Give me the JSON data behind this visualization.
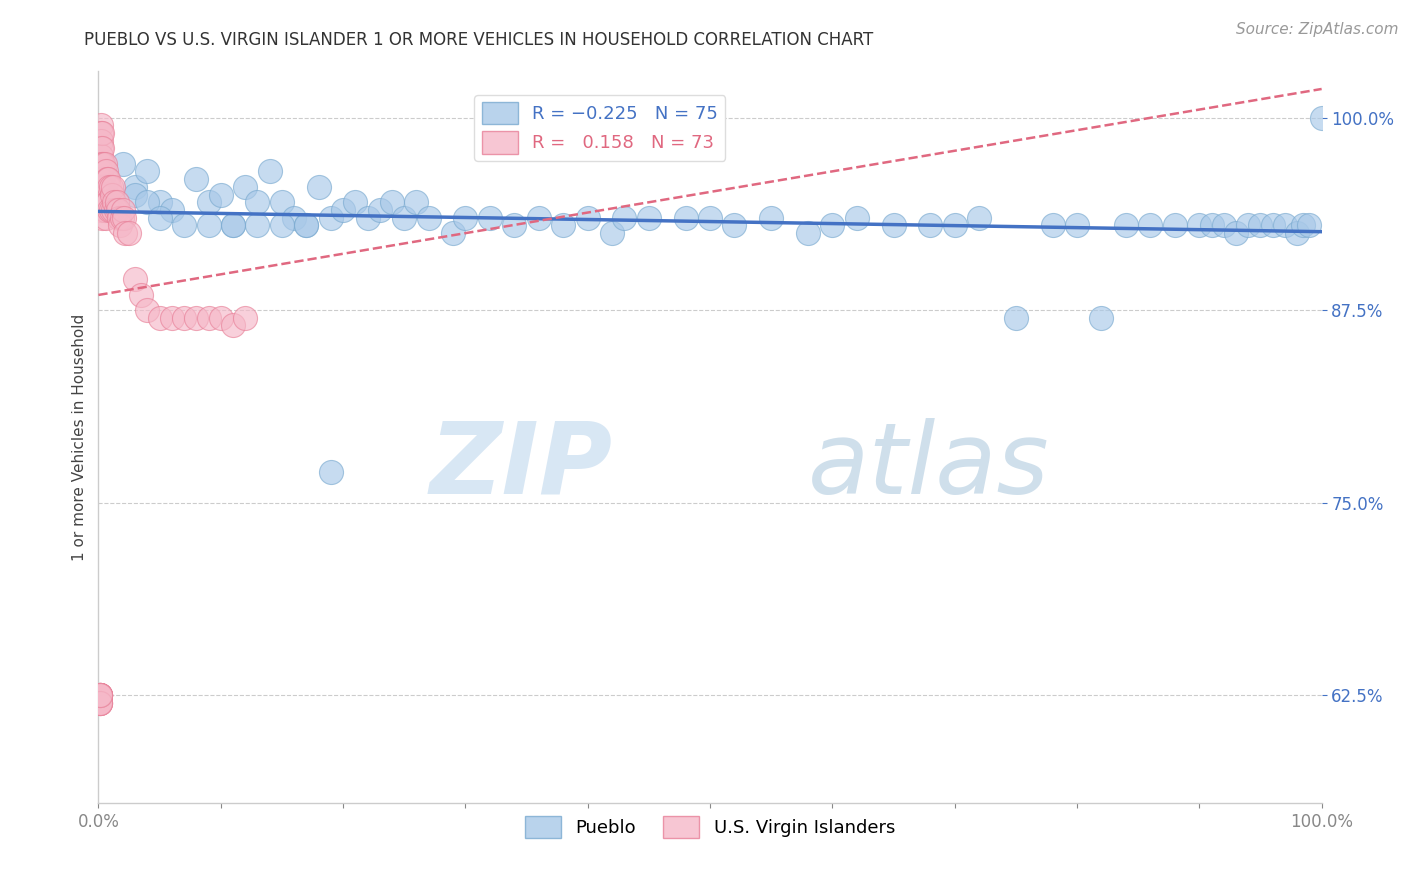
{
  "title": "PUEBLO VS U.S. VIRGIN ISLANDER 1 OR MORE VEHICLES IN HOUSEHOLD CORRELATION CHART",
  "source": "Source: ZipAtlas.com",
  "ylabel": "1 or more Vehicles in Household",
  "ytick_labels": [
    "62.5%",
    "75.0%",
    "87.5%",
    "100.0%"
  ],
  "ytick_values": [
    0.625,
    0.75,
    0.875,
    1.0
  ],
  "xlim": [
    0.0,
    1.0
  ],
  "ylim": [
    0.555,
    1.03
  ],
  "pueblo_color": "#a8c8e8",
  "pueblo_edge": "#7aaad0",
  "virgin_color": "#f5b8c8",
  "virgin_edge": "#e88098",
  "trendline_pueblo_color": "#4472c4",
  "trendline_virgin_color": "#e06880",
  "watermark_zip": "ZIP",
  "watermark_atlas": "atlas",
  "pueblo_x": [
    0.02,
    0.03,
    0.04,
    0.05,
    0.06,
    0.08,
    0.09,
    0.1,
    0.11,
    0.12,
    0.13,
    0.14,
    0.15,
    0.16,
    0.17,
    0.18,
    0.19,
    0.2,
    0.21,
    0.22,
    0.23,
    0.24,
    0.25,
    0.26,
    0.27,
    0.29,
    0.3,
    0.32,
    0.34,
    0.36,
    0.38,
    0.4,
    0.42,
    0.43,
    0.45,
    0.48,
    0.5,
    0.52,
    0.55,
    0.58,
    0.6,
    0.62,
    0.65,
    0.68,
    0.7,
    0.72,
    0.75,
    0.78,
    0.8,
    0.82,
    0.84,
    0.86,
    0.88,
    0.9,
    0.91,
    0.92,
    0.93,
    0.94,
    0.95,
    0.96,
    0.97,
    0.98,
    0.985,
    0.99,
    1.0,
    0.03,
    0.04,
    0.05,
    0.07,
    0.09,
    0.11,
    0.13,
    0.15,
    0.17,
    0.19
  ],
  "pueblo_y": [
    0.97,
    0.955,
    0.965,
    0.945,
    0.94,
    0.96,
    0.945,
    0.95,
    0.93,
    0.955,
    0.945,
    0.965,
    0.945,
    0.935,
    0.93,
    0.955,
    0.935,
    0.94,
    0.945,
    0.935,
    0.94,
    0.945,
    0.935,
    0.945,
    0.935,
    0.925,
    0.935,
    0.935,
    0.93,
    0.935,
    0.93,
    0.935,
    0.925,
    0.935,
    0.935,
    0.935,
    0.935,
    0.93,
    0.935,
    0.925,
    0.93,
    0.935,
    0.93,
    0.93,
    0.93,
    0.935,
    0.87,
    0.93,
    0.93,
    0.87,
    0.93,
    0.93,
    0.93,
    0.93,
    0.93,
    0.93,
    0.925,
    0.93,
    0.93,
    0.93,
    0.93,
    0.925,
    0.93,
    0.93,
    1.0,
    0.95,
    0.945,
    0.935,
    0.93,
    0.93,
    0.93,
    0.93,
    0.93,
    0.93,
    0.77
  ],
  "virgin_x": [
    0.002,
    0.002,
    0.002,
    0.002,
    0.002,
    0.002,
    0.002,
    0.002,
    0.002,
    0.002,
    0.002,
    0.002,
    0.003,
    0.003,
    0.003,
    0.003,
    0.003,
    0.003,
    0.003,
    0.004,
    0.004,
    0.004,
    0.005,
    0.005,
    0.005,
    0.006,
    0.006,
    0.006,
    0.007,
    0.007,
    0.008,
    0.008,
    0.009,
    0.009,
    0.01,
    0.01,
    0.011,
    0.012,
    0.012,
    0.013,
    0.014,
    0.015,
    0.016,
    0.017,
    0.018,
    0.019,
    0.02,
    0.021,
    0.022,
    0.025,
    0.03,
    0.035,
    0.04,
    0.05,
    0.06,
    0.07,
    0.08,
    0.09,
    0.1,
    0.11,
    0.12,
    0.001,
    0.001,
    0.001,
    0.001,
    0.001,
    0.001,
    0.001,
    0.001,
    0.001,
    0.001,
    0.001,
    0.001
  ],
  "virgin_y": [
    0.995,
    0.99,
    0.985,
    0.98,
    0.975,
    0.97,
    0.965,
    0.96,
    0.955,
    0.95,
    0.945,
    0.94,
    0.99,
    0.98,
    0.97,
    0.96,
    0.95,
    0.94,
    0.935,
    0.97,
    0.955,
    0.945,
    0.97,
    0.955,
    0.94,
    0.965,
    0.95,
    0.935,
    0.96,
    0.945,
    0.96,
    0.945,
    0.955,
    0.94,
    0.955,
    0.94,
    0.95,
    0.955,
    0.94,
    0.945,
    0.94,
    0.945,
    0.94,
    0.935,
    0.93,
    0.935,
    0.94,
    0.935,
    0.925,
    0.925,
    0.895,
    0.885,
    0.875,
    0.87,
    0.87,
    0.87,
    0.87,
    0.87,
    0.87,
    0.865,
    0.87,
    0.625,
    0.62,
    0.625,
    0.62,
    0.625,
    0.625,
    0.62,
    0.625,
    0.625,
    0.625,
    0.62,
    0.625
  ]
}
